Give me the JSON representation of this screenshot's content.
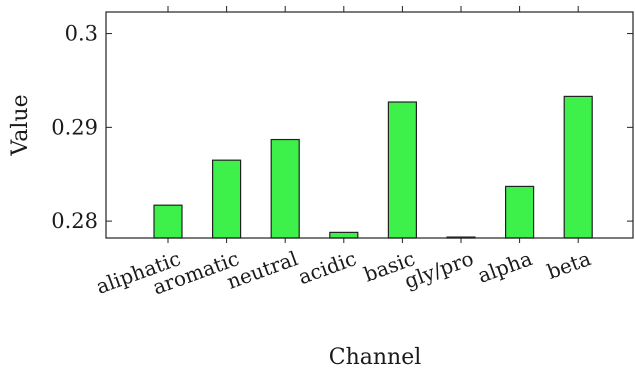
{
  "chart_data": {
    "type": "bar",
    "title": "",
    "xlabel": "Channel",
    "ylabel": "Value",
    "categories": [
      "aliphatic",
      "aromatic",
      "neutral",
      "acidic",
      "basic",
      "gly/pro",
      "alpha",
      "beta"
    ],
    "values": [
      0.2817,
      0.2865,
      0.2887,
      0.2788,
      0.2927,
      0.2783,
      0.2837,
      0.2933
    ],
    "yticks": [
      0.28,
      0.29,
      0.3
    ],
    "ytick_labels": [
      "0.28",
      "0.29",
      "0.3"
    ],
    "ylim": [
      0.2782,
      0.3023
    ],
    "grid": false,
    "legend": "none",
    "colors": {
      "bar": "#3df04a",
      "edge": "#222222"
    }
  }
}
